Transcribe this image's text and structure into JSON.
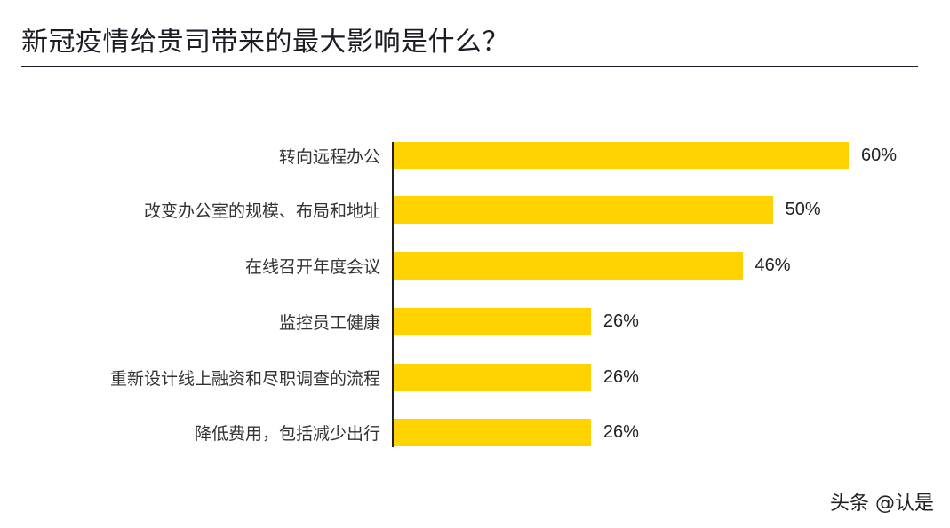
{
  "header": {
    "title": "新冠疫情给贵司带来的最大影响是什么？"
  },
  "colors": {
    "bar": "#FFD200",
    "rule": "#1a1d2a"
  },
  "watermark": "头条 @认是",
  "rows": [
    {
      "label": "转向远程办公",
      "value_label": "60%"
    },
    {
      "label": "改变办公室的规模、布局和地址",
      "value_label": "50%"
    },
    {
      "label": "在线召开年度会议",
      "value_label": "46%"
    },
    {
      "label": "监控员工健康",
      "value_label": "26%"
    },
    {
      "label": "重新设计线上融资和尽职调查的流程",
      "value_label": "26%"
    },
    {
      "label": "降低费用，包括减少出行",
      "value_label": "26%"
    }
  ],
  "chart_data": {
    "type": "bar",
    "orientation": "horizontal",
    "title": "新冠疫情给贵司带来的最大影响是什么？",
    "categories": [
      "转向远程办公",
      "改变办公室的规模、布局和地址",
      "在线召开年度会议",
      "监控员工健康",
      "重新设计线上融资和尽职调查的流程",
      "降低费用，包括减少出行"
    ],
    "values": [
      60,
      50,
      46,
      26,
      26,
      26
    ],
    "unit": "%",
    "xlabel": "",
    "ylabel": "",
    "xlim": [
      0,
      60
    ],
    "grid": false,
    "legend": null,
    "data_labels": true
  }
}
